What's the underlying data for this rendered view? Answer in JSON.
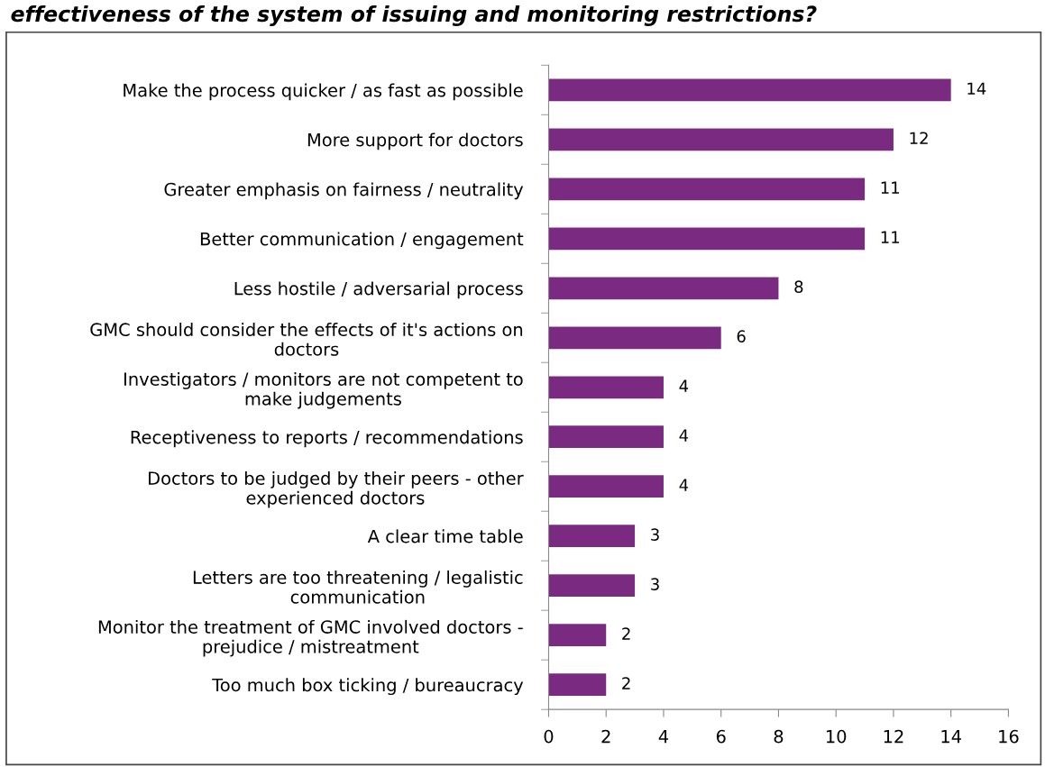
{
  "chart_data": {
    "type": "bar",
    "orientation": "horizontal",
    "title": "effectiveness of the system of issuing and monitoring restrictions?",
    "categories": [
      "Make the process quicker / as fast as possible",
      "More support for doctors",
      "Greater emphasis on fairness / neutrality",
      "Better communication / engagement",
      "Less hostile / adversarial process",
      "GMC should consider the effects of it's actions on\ndoctors",
      "Investigators / monitors are not competent to\nmake judgements",
      "Receptiveness to reports / recommendations",
      "Doctors to be judged by their peers - other\nexperienced doctors",
      "A clear time table",
      "Letters are too threatening / legalistic\ncommunication",
      "Monitor the treatment of GMC involved doctors -\nprejudice / mistreatment",
      "Too much box ticking / bureaucracy"
    ],
    "values": [
      14,
      12,
      11,
      11,
      8,
      6,
      4,
      4,
      4,
      3,
      3,
      2,
      2
    ],
    "color": "#7b2a82",
    "xlim": [
      0,
      16
    ],
    "xticks": [
      0,
      2,
      4,
      6,
      8,
      10,
      12,
      14,
      16
    ],
    "data_labels": true,
    "grid": false,
    "legend": false
  }
}
